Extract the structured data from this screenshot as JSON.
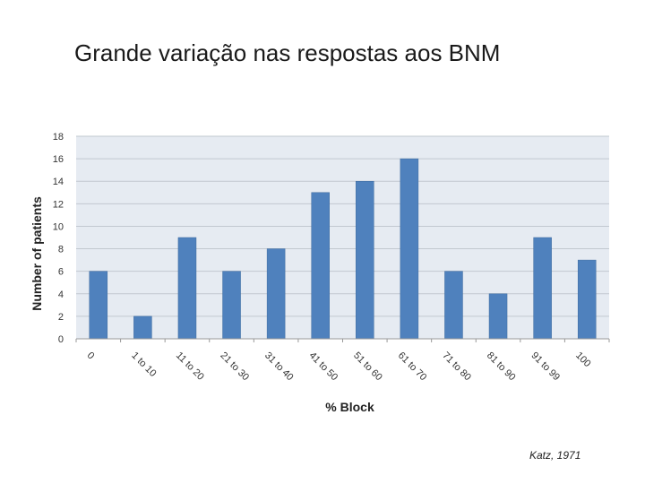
{
  "slide": {
    "title": "Grande variação nas respostas aos BNM",
    "citation": "Katz, 1971"
  },
  "colors": {
    "bar": "#4f81bd",
    "bar_edge": "#3d6a9e",
    "plot_bg": "#e6ebf2",
    "grid": "#c2c8d0"
  },
  "chart_data": {
    "type": "bar",
    "categories": [
      "0",
      "1 to 10",
      "11 to 20",
      "21 to 30",
      "31 to 40",
      "41 to 50",
      "51 to 60",
      "61 to 70",
      "71 to 80",
      "81 to 90",
      "91 to 99",
      "100"
    ],
    "values": [
      6,
      2,
      9,
      6,
      8,
      13,
      14,
      16,
      6,
      4,
      9,
      7
    ],
    "xlabel": "% Block",
    "ylabel": "Number of patients",
    "ylim": [
      0,
      18
    ],
    "yticks": [
      0,
      2,
      4,
      6,
      8,
      10,
      12,
      14,
      16,
      18
    ],
    "grid": true,
    "legend": "none"
  }
}
